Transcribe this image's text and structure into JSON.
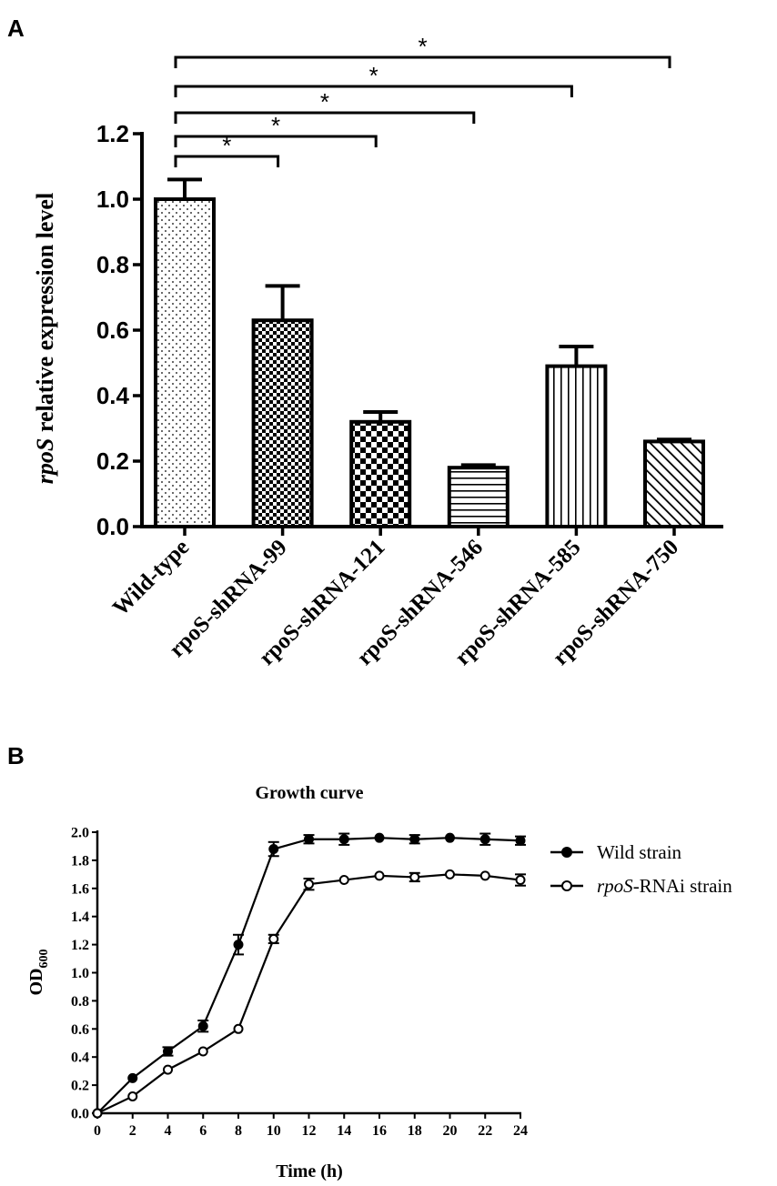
{
  "panel_a_letter": "A",
  "panel_b_letter": "B",
  "chart_data": [
    {
      "type": "bar",
      "title": "",
      "ylabel_italic": "rpoS",
      "ylabel_rest": " relative expression level",
      "xlabel": "",
      "categories": [
        "Wild-type",
        "rpoS-shRNA-99",
        "rpoS-shRNA-121",
        "rpoS-shRNA-546",
        "rpoS-shRNA-585",
        "rpoS-shRNA-750"
      ],
      "values": [
        1.0,
        0.63,
        0.32,
        0.18,
        0.49,
        0.26
      ],
      "errors": [
        0.06,
        0.105,
        0.03,
        0.008,
        0.06,
        0.006
      ],
      "patterns": [
        "dots",
        "checker-fine",
        "checker",
        "horizontal",
        "vertical",
        "diagonal"
      ],
      "ylim": [
        0,
        1.2
      ],
      "yticks": [
        "0.0",
        "0.2",
        "0.4",
        "0.6",
        "0.8",
        "1.0",
        "1.2"
      ],
      "significance": [
        {
          "from": 0,
          "to": 1,
          "label": "*"
        },
        {
          "from": 0,
          "to": 2,
          "label": "*"
        },
        {
          "from": 0,
          "to": 3,
          "label": "*"
        },
        {
          "from": 0,
          "to": 4,
          "label": "*"
        },
        {
          "from": 0,
          "to": 5,
          "label": "*"
        }
      ]
    },
    {
      "type": "line",
      "title": "Growth curve",
      "xlabel": "Time (h)",
      "ylabel_main": "OD",
      "ylabel_sub": "600",
      "xlim": [
        0,
        24
      ],
      "ylim": [
        0,
        2.0
      ],
      "xticks": [
        "0",
        "2",
        "4",
        "6",
        "8",
        "10",
        "12",
        "14",
        "16",
        "18",
        "20",
        "22",
        "24"
      ],
      "yticks": [
        "0.0",
        "0.2",
        "0.4",
        "0.6",
        "0.8",
        "1.0",
        "1.2",
        "1.4",
        "1.6",
        "1.8",
        "2.0"
      ],
      "x": [
        0,
        2,
        4,
        6,
        8,
        10,
        12,
        14,
        16,
        18,
        20,
        22,
        24
      ],
      "series": [
        {
          "name": "Wild strain",
          "name_italic": "",
          "name_rest": "Wild strain",
          "marker": "filled",
          "values": [
            0.0,
            0.25,
            0.44,
            0.62,
            1.2,
            1.88,
            1.95,
            1.95,
            1.96,
            1.95,
            1.96,
            1.95,
            1.94
          ],
          "errors": [
            0.0,
            0.0,
            0.03,
            0.04,
            0.07,
            0.05,
            0.03,
            0.04,
            0.0,
            0.03,
            0.0,
            0.04,
            0.03
          ]
        },
        {
          "name": "rpoS-RNAi strain",
          "name_italic": "rpoS",
          "name_rest": "-RNAi strain",
          "marker": "open",
          "values": [
            0.0,
            0.12,
            0.31,
            0.44,
            0.6,
            1.24,
            1.63,
            1.66,
            1.69,
            1.68,
            1.7,
            1.69,
            1.66
          ],
          "errors": [
            0.0,
            0.0,
            0.0,
            0.0,
            0.0,
            0.03,
            0.04,
            0.0,
            0.0,
            0.03,
            0.0,
            0.0,
            0.04
          ]
        }
      ]
    }
  ]
}
